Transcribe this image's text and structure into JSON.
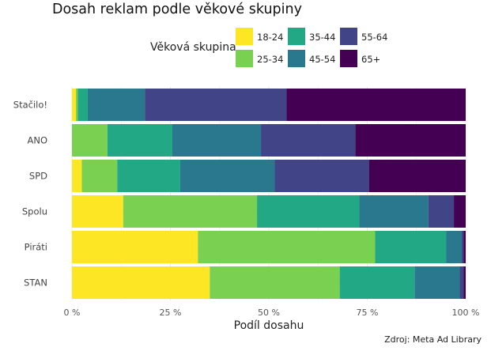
{
  "chart_data": {
    "type": "bar",
    "orientation": "horizontal",
    "stacked": true,
    "title": "Dosah reklam podle věkové skupiny",
    "xlabel": "Podíl dosahu",
    "ylabel": "",
    "xlim": [
      0,
      1
    ],
    "x_ticks": [
      "0 %",
      "25 %",
      "50 %",
      "75 %",
      "100 %"
    ],
    "grid": true,
    "legend": {
      "title": "Věková skupina",
      "position": "top"
    },
    "caption": "Zdroj: Meta Ad Library",
    "categories": [
      "Stačilo!",
      "ANO",
      "SPD",
      "Spolu",
      "Piráti",
      "STAN"
    ],
    "series": [
      {
        "name": "18-24",
        "color": "#FDE725",
        "values": [
          0.01,
          0.0,
          0.025,
          0.13,
          0.32,
          0.35
        ]
      },
      {
        "name": "25-34",
        "color": "#7AD151",
        "values": [
          0.005,
          0.09,
          0.09,
          0.34,
          0.45,
          0.33
        ]
      },
      {
        "name": "35-44",
        "color": "#22A884",
        "values": [
          0.025,
          0.165,
          0.16,
          0.26,
          0.18,
          0.19
        ]
      },
      {
        "name": "45-54",
        "color": "#2A788E",
        "values": [
          0.145,
          0.225,
          0.24,
          0.175,
          0.04,
          0.115
        ]
      },
      {
        "name": "55-64",
        "color": "#414487",
        "values": [
          0.36,
          0.24,
          0.24,
          0.065,
          0.005,
          0.01
        ]
      },
      {
        "name": "65+",
        "color": "#440154",
        "values": [
          0.455,
          0.28,
          0.245,
          0.03,
          0.005,
          0.005
        ]
      }
    ]
  }
}
